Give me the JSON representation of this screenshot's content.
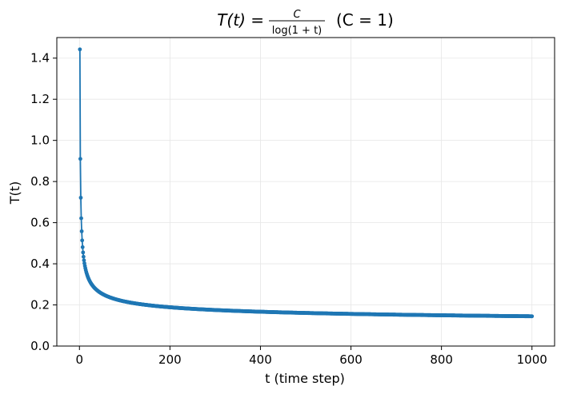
{
  "chart_data": {
    "type": "line",
    "title": {
      "lhs": "T(t) =",
      "numerator": "C",
      "denominator": "log(1 + t)",
      "suffix": "(C = 1)"
    },
    "xlabel": "t (time step)",
    "ylabel": "T(t)",
    "xlim": [
      -50,
      1050
    ],
    "ylim": [
      0,
      1.5
    ],
    "x_ticks": [
      0,
      200,
      400,
      600,
      800,
      1000
    ],
    "x_tick_labels": [
      "0",
      "200",
      "400",
      "600",
      "800",
      "1000"
    ],
    "y_ticks": [
      0.0,
      0.2,
      0.4,
      0.6,
      0.8,
      1.0,
      1.2,
      1.4
    ],
    "y_tick_labels": [
      "0.0",
      "0.2",
      "0.4",
      "0.6",
      "0.8",
      "1.0",
      "1.2",
      "1.4"
    ],
    "grid": true,
    "series": [
      {
        "formula": "C / ln(1 + t)",
        "C": 1,
        "t_start": 1,
        "t_end": 1000,
        "t_step": 1,
        "color": "#1f77b4",
        "marker": "circle"
      }
    ]
  }
}
